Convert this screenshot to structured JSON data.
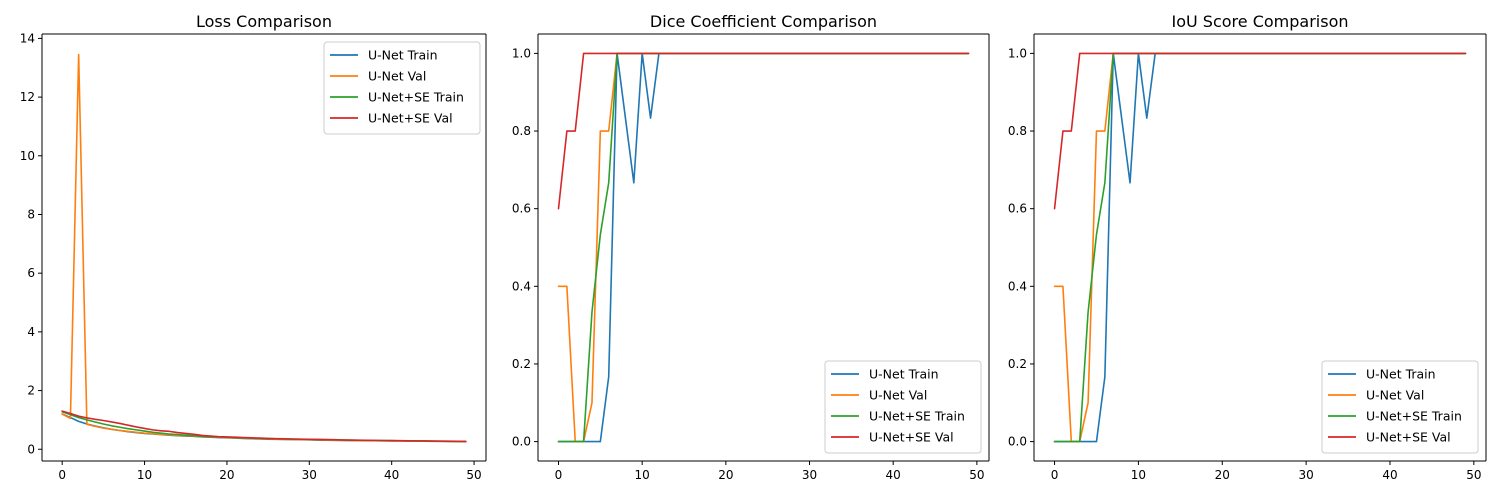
{
  "chart_data": [
    {
      "type": "line",
      "title": "Loss Comparison",
      "xlim": [
        -2.45,
        51.45
      ],
      "ylim": [
        -0.4,
        14.15
      ],
      "xticks": [
        0,
        10,
        20,
        30,
        40,
        50
      ],
      "yticks": [
        0,
        2,
        4,
        6,
        8,
        10,
        12,
        14
      ],
      "ytick_format": "int",
      "legend_position": "upper right",
      "x": [
        0,
        1,
        2,
        3,
        4,
        5,
        6,
        7,
        8,
        9,
        10,
        11,
        12,
        13,
        14,
        15,
        16,
        17,
        18,
        19,
        20,
        21,
        22,
        23,
        24,
        25,
        26,
        27,
        28,
        29,
        30,
        31,
        32,
        33,
        34,
        35,
        36,
        37,
        38,
        39,
        40,
        41,
        42,
        43,
        44,
        45,
        46,
        47,
        48,
        49
      ],
      "series": [
        {
          "name": "U-Net Train",
          "color": "#1f77b4",
          "values": [
            1.2,
            1.08,
            0.95,
            0.86,
            0.79,
            0.73,
            0.68,
            0.64,
            0.6,
            0.57,
            0.54,
            0.52,
            0.5,
            0.48,
            0.46,
            0.45,
            0.44,
            0.42,
            0.41,
            0.4,
            0.39,
            0.38,
            0.37,
            0.36,
            0.35,
            0.345,
            0.34,
            0.335,
            0.33,
            0.325,
            0.32,
            0.315,
            0.31,
            0.305,
            0.3,
            0.298,
            0.295,
            0.292,
            0.29,
            0.287,
            0.285,
            0.282,
            0.28,
            0.278,
            0.275,
            0.272,
            0.27,
            0.268,
            0.265,
            0.262
          ]
        },
        {
          "name": "U-Net Val",
          "color": "#ff7f0e",
          "values": [
            1.2,
            1.05,
            13.45,
            0.85,
            0.78,
            0.72,
            0.68,
            0.64,
            0.61,
            0.58,
            0.55,
            0.53,
            0.51,
            0.49,
            0.47,
            0.46,
            0.45,
            0.43,
            0.42,
            0.41,
            0.4,
            0.39,
            0.38,
            0.37,
            0.36,
            0.35,
            0.345,
            0.34,
            0.335,
            0.33,
            0.325,
            0.32,
            0.315,
            0.31,
            0.305,
            0.3,
            0.298,
            0.295,
            0.292,
            0.29,
            0.287,
            0.285,
            0.282,
            0.28,
            0.278,
            0.275,
            0.272,
            0.27,
            0.268,
            0.265
          ]
        },
        {
          "name": "U-Net+SE Train",
          "color": "#2ca02c",
          "values": [
            1.28,
            1.18,
            1.08,
            1.0,
            0.93,
            0.86,
            0.8,
            0.75,
            0.7,
            0.66,
            0.62,
            0.58,
            0.55,
            0.52,
            0.5,
            0.48,
            0.46,
            0.44,
            0.43,
            0.42,
            0.41,
            0.4,
            0.39,
            0.38,
            0.37,
            0.36,
            0.355,
            0.35,
            0.345,
            0.34,
            0.335,
            0.33,
            0.325,
            0.32,
            0.315,
            0.31,
            0.305,
            0.3,
            0.298,
            0.295,
            0.292,
            0.29,
            0.287,
            0.284,
            0.28,
            0.277,
            0.274,
            0.27,
            0.267,
            0.264
          ]
        },
        {
          "name": "U-Net+SE Val",
          "color": "#d62728",
          "values": [
            1.3,
            1.22,
            1.13,
            1.07,
            1.02,
            0.98,
            0.93,
            0.88,
            0.82,
            0.76,
            0.71,
            0.66,
            0.63,
            0.61,
            0.57,
            0.54,
            0.51,
            0.47,
            0.45,
            0.43,
            0.42,
            0.41,
            0.4,
            0.39,
            0.38,
            0.37,
            0.36,
            0.355,
            0.35,
            0.345,
            0.34,
            0.335,
            0.33,
            0.325,
            0.32,
            0.315,
            0.31,
            0.305,
            0.3,
            0.298,
            0.295,
            0.292,
            0.289,
            0.286,
            0.283,
            0.28,
            0.277,
            0.274,
            0.271,
            0.268
          ]
        }
      ]
    },
    {
      "type": "line",
      "title": "Dice Coefficient Comparison",
      "xlim": [
        -2.45,
        51.45
      ],
      "ylim": [
        -0.05,
        1.05
      ],
      "xticks": [
        0,
        10,
        20,
        30,
        40,
        50
      ],
      "yticks": [
        0,
        0.2,
        0.4,
        0.6,
        0.8,
        1.0
      ],
      "ytick_format": "1dp",
      "legend_position": "lower right",
      "x": [
        0,
        1,
        2,
        3,
        4,
        5,
        6,
        7,
        8,
        9,
        10,
        11,
        12,
        13,
        14,
        15,
        16,
        17,
        18,
        19,
        20,
        21,
        22,
        23,
        24,
        25,
        26,
        27,
        28,
        29,
        30,
        31,
        32,
        33,
        34,
        35,
        36,
        37,
        38,
        39,
        40,
        41,
        42,
        43,
        44,
        45,
        46,
        47,
        48,
        49
      ],
      "series": [
        {
          "name": "U-Net Train",
          "color": "#1f77b4",
          "values": [
            0,
            0,
            0,
            0,
            0,
            0,
            0.1667,
            1.0,
            0.8333,
            0.6667,
            1.0,
            0.8333,
            1.0,
            1,
            1,
            1,
            1,
            1,
            1,
            1,
            1,
            1,
            1,
            1,
            1,
            1,
            1,
            1,
            1,
            1,
            1,
            1,
            1,
            1,
            1,
            1,
            1,
            1,
            1,
            1,
            1,
            1,
            1,
            1,
            1,
            1,
            1,
            1,
            1,
            1
          ]
        },
        {
          "name": "U-Net Val",
          "color": "#ff7f0e",
          "values": [
            0.4,
            0.4,
            0,
            0,
            0.1,
            0.8,
            0.8,
            1.0,
            1,
            1,
            1,
            1,
            1,
            1,
            1,
            1,
            1,
            1,
            1,
            1,
            1,
            1,
            1,
            1,
            1,
            1,
            1,
            1,
            1,
            1,
            1,
            1,
            1,
            1,
            1,
            1,
            1,
            1,
            1,
            1,
            1,
            1,
            1,
            1,
            1,
            1,
            1,
            1,
            1,
            1
          ]
        },
        {
          "name": "U-Net+SE Train",
          "color": "#2ca02c",
          "values": [
            0,
            0,
            0,
            0,
            0.3333,
            0.5333,
            0.6667,
            1.0,
            1,
            1,
            1,
            1,
            1,
            1,
            1,
            1,
            1,
            1,
            1,
            1,
            1,
            1,
            1,
            1,
            1,
            1,
            1,
            1,
            1,
            1,
            1,
            1,
            1,
            1,
            1,
            1,
            1,
            1,
            1,
            1,
            1,
            1,
            1,
            1,
            1,
            1,
            1,
            1,
            1,
            1
          ]
        },
        {
          "name": "U-Net+SE Val",
          "color": "#d62728",
          "values": [
            0.6,
            0.8,
            0.8,
            1.0,
            1,
            1,
            1,
            1,
            1,
            1,
            1,
            1,
            1,
            1,
            1,
            1,
            1,
            1,
            1,
            1,
            1,
            1,
            1,
            1,
            1,
            1,
            1,
            1,
            1,
            1,
            1,
            1,
            1,
            1,
            1,
            1,
            1,
            1,
            1,
            1,
            1,
            1,
            1,
            1,
            1,
            1,
            1,
            1,
            1,
            1
          ]
        }
      ]
    },
    {
      "type": "line",
      "title": "IoU Score Comparison",
      "xlim": [
        -2.45,
        51.45
      ],
      "ylim": [
        -0.05,
        1.05
      ],
      "xticks": [
        0,
        10,
        20,
        30,
        40,
        50
      ],
      "yticks": [
        0,
        0.2,
        0.4,
        0.6,
        0.8,
        1.0
      ],
      "ytick_format": "1dp",
      "legend_position": "lower right",
      "x": [
        0,
        1,
        2,
        3,
        4,
        5,
        6,
        7,
        8,
        9,
        10,
        11,
        12,
        13,
        14,
        15,
        16,
        17,
        18,
        19,
        20,
        21,
        22,
        23,
        24,
        25,
        26,
        27,
        28,
        29,
        30,
        31,
        32,
        33,
        34,
        35,
        36,
        37,
        38,
        39,
        40,
        41,
        42,
        43,
        44,
        45,
        46,
        47,
        48,
        49
      ],
      "series": [
        {
          "name": "U-Net Train",
          "color": "#1f77b4",
          "values": [
            0,
            0,
            0,
            0,
            0,
            0,
            0.1667,
            1.0,
            0.8333,
            0.6667,
            1.0,
            0.8333,
            1.0,
            1,
            1,
            1,
            1,
            1,
            1,
            1,
            1,
            1,
            1,
            1,
            1,
            1,
            1,
            1,
            1,
            1,
            1,
            1,
            1,
            1,
            1,
            1,
            1,
            1,
            1,
            1,
            1,
            1,
            1,
            1,
            1,
            1,
            1,
            1,
            1,
            1
          ]
        },
        {
          "name": "U-Net Val",
          "color": "#ff7f0e",
          "values": [
            0.4,
            0.4,
            0,
            0,
            0.1,
            0.8,
            0.8,
            1.0,
            1,
            1,
            1,
            1,
            1,
            1,
            1,
            1,
            1,
            1,
            1,
            1,
            1,
            1,
            1,
            1,
            1,
            1,
            1,
            1,
            1,
            1,
            1,
            1,
            1,
            1,
            1,
            1,
            1,
            1,
            1,
            1,
            1,
            1,
            1,
            1,
            1,
            1,
            1,
            1,
            1,
            1
          ]
        },
        {
          "name": "U-Net+SE Train",
          "color": "#2ca02c",
          "values": [
            0,
            0,
            0,
            0,
            0.3333,
            0.5333,
            0.6667,
            1.0,
            1,
            1,
            1,
            1,
            1,
            1,
            1,
            1,
            1,
            1,
            1,
            1,
            1,
            1,
            1,
            1,
            1,
            1,
            1,
            1,
            1,
            1,
            1,
            1,
            1,
            1,
            1,
            1,
            1,
            1,
            1,
            1,
            1,
            1,
            1,
            1,
            1,
            1,
            1,
            1,
            1,
            1
          ]
        },
        {
          "name": "U-Net+SE Val",
          "color": "#d62728",
          "values": [
            0.6,
            0.8,
            0.8,
            1.0,
            1,
            1,
            1,
            1,
            1,
            1,
            1,
            1,
            1,
            1,
            1,
            1,
            1,
            1,
            1,
            1,
            1,
            1,
            1,
            1,
            1,
            1,
            1,
            1,
            1,
            1,
            1,
            1,
            1,
            1,
            1,
            1,
            1,
            1,
            1,
            1,
            1,
            1,
            1,
            1,
            1,
            1,
            1,
            1,
            1,
            1
          ]
        }
      ]
    }
  ]
}
